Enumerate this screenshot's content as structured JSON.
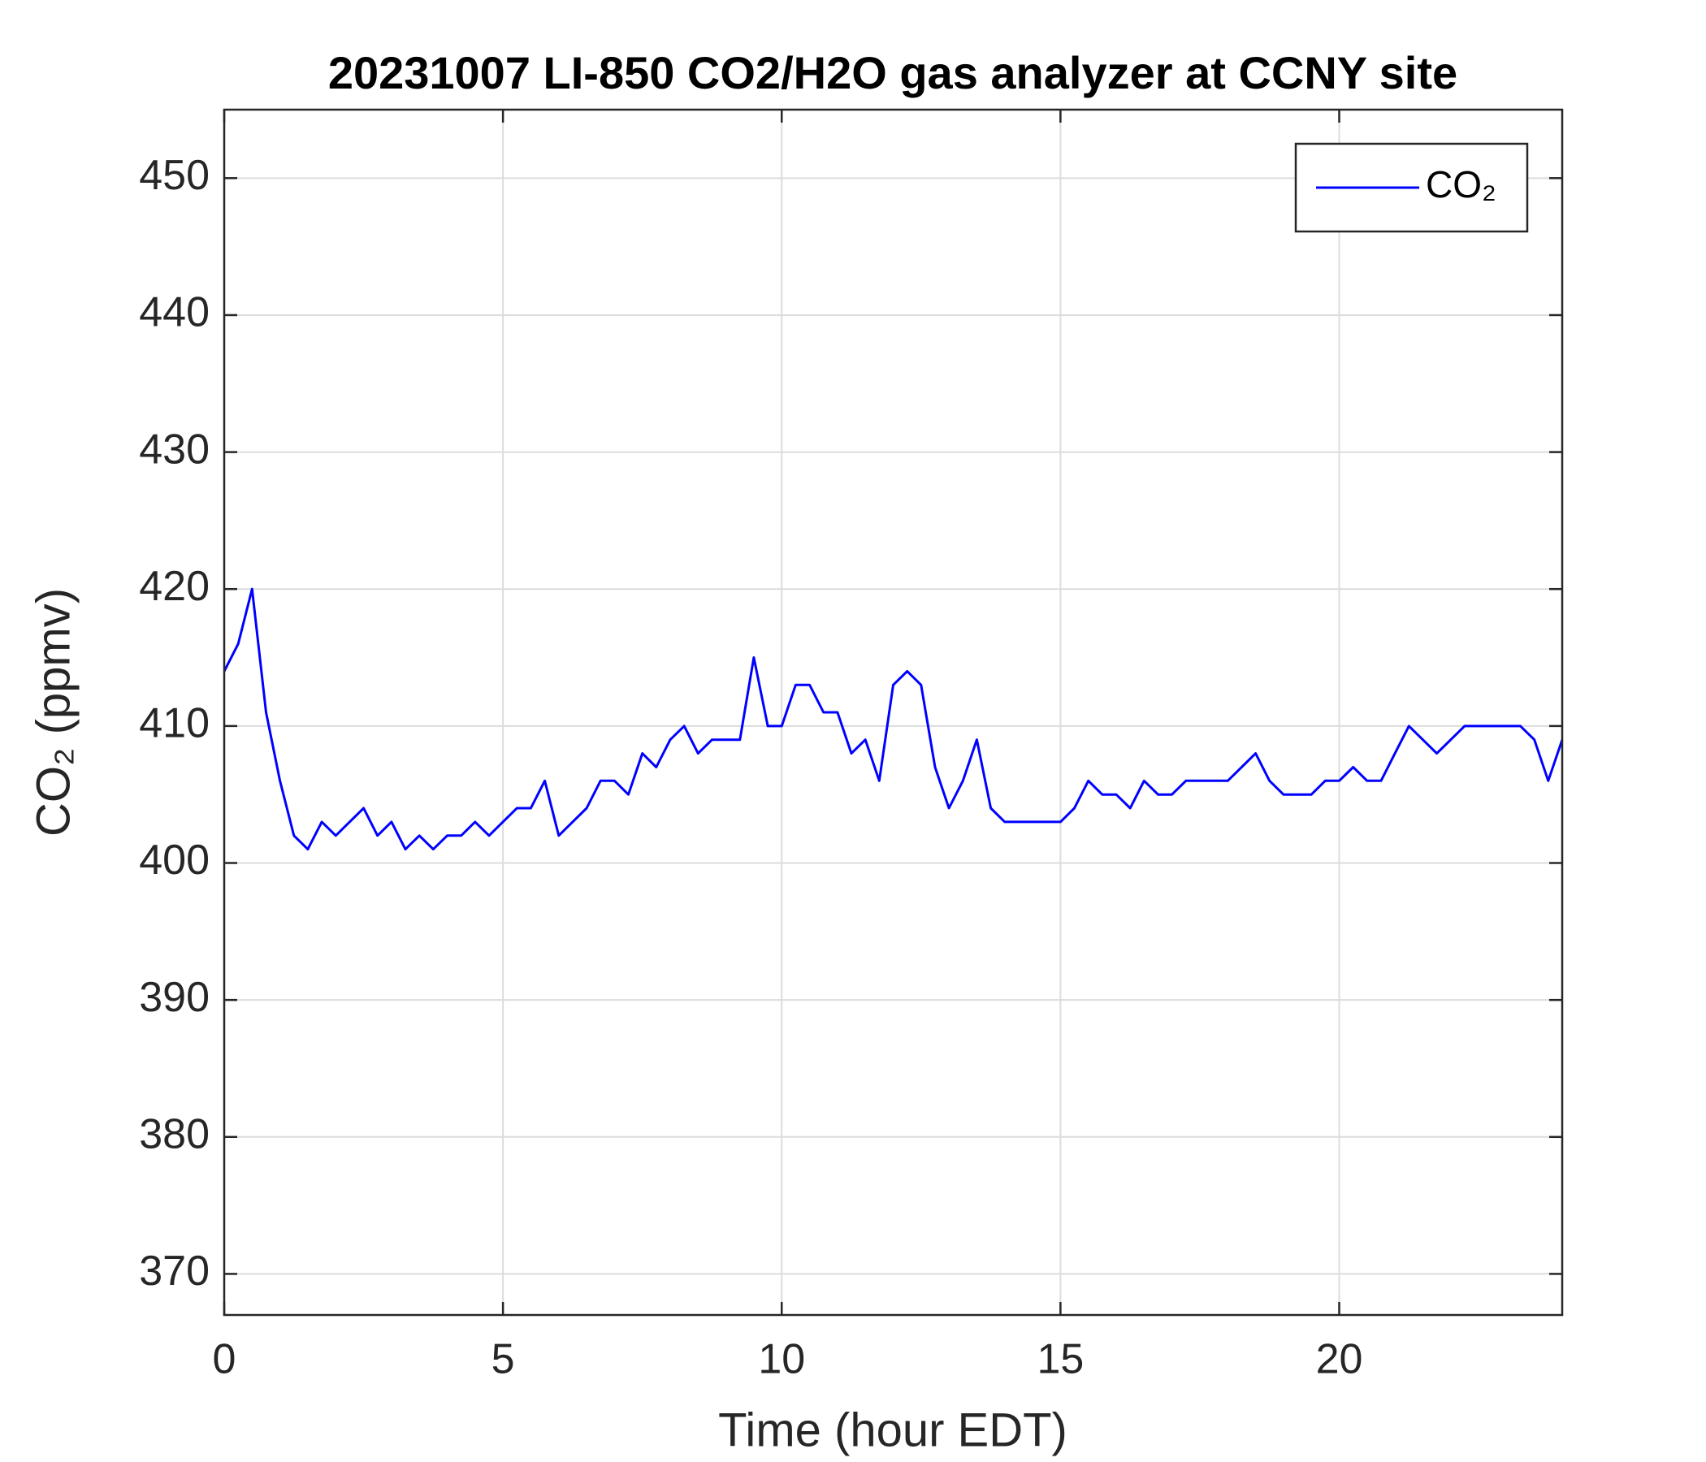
{
  "chart_data": {
    "type": "line",
    "title": "20231007 LI-850 CO2/H2O gas analyzer at CCNY site",
    "xlabel": "Time (hour EDT)",
    "ylabel": "CO₂ (ppmv)",
    "x": [
      0,
      0.25,
      0.5,
      0.75,
      1,
      1.25,
      1.5,
      1.75,
      2,
      2.25,
      2.5,
      2.75,
      3,
      3.25,
      3.5,
      3.75,
      4,
      4.25,
      4.5,
      4.75,
      5,
      5.25,
      5.5,
      5.75,
      6,
      6.25,
      6.5,
      6.75,
      7,
      7.25,
      7.5,
      7.75,
      8,
      8.25,
      8.5,
      8.75,
      9,
      9.25,
      9.5,
      9.75,
      10,
      10.25,
      10.5,
      10.75,
      11,
      11.25,
      11.5,
      11.75,
      12,
      12.25,
      12.5,
      12.75,
      13,
      13.25,
      13.5,
      13.75,
      14,
      14.25,
      14.5,
      14.75,
      15,
      15.25,
      15.5,
      15.75,
      16,
      16.25,
      16.5,
      16.75,
      17,
      17.25,
      17.5,
      17.75,
      18,
      18.25,
      18.5,
      18.75,
      19,
      19.25,
      19.5,
      19.75,
      20,
      20.25,
      20.5,
      20.75,
      21,
      21.25,
      21.5,
      21.75,
      22,
      22.25,
      22.5,
      22.75,
      23,
      23.25,
      23.5,
      23.75,
      24
    ],
    "series": [
      {
        "name": "CO₂",
        "color": "#0000ff",
        "values": [
          414,
          416,
          420,
          411,
          406,
          402,
          401,
          403,
          402,
          403,
          404,
          402,
          403,
          401,
          402,
          401,
          402,
          402,
          403,
          402,
          403,
          404,
          404,
          406,
          402,
          403,
          404,
          406,
          406,
          405,
          408,
          407,
          409,
          410,
          408,
          409,
          409,
          409,
          415,
          410,
          410,
          413,
          413,
          411,
          411,
          408,
          409,
          406,
          413,
          414,
          413,
          407,
          404,
          406,
          409,
          404,
          403,
          403,
          403,
          403,
          403,
          404,
          406,
          405,
          405,
          404,
          406,
          405,
          405,
          406,
          406,
          406,
          406,
          407,
          408,
          406,
          405,
          405,
          405,
          406,
          406,
          407,
          406,
          406,
          408,
          410,
          409,
          408,
          409,
          410,
          410,
          410,
          410,
          410,
          409,
          406,
          409
        ]
      }
    ],
    "xlim": [
      0,
      24
    ],
    "xticks": [
      0,
      5,
      10,
      15,
      20
    ],
    "ylim": [
      367,
      455
    ],
    "yticks": [
      370,
      380,
      390,
      400,
      410,
      420,
      430,
      440,
      450
    ],
    "grid": true,
    "legend": "upper right"
  }
}
